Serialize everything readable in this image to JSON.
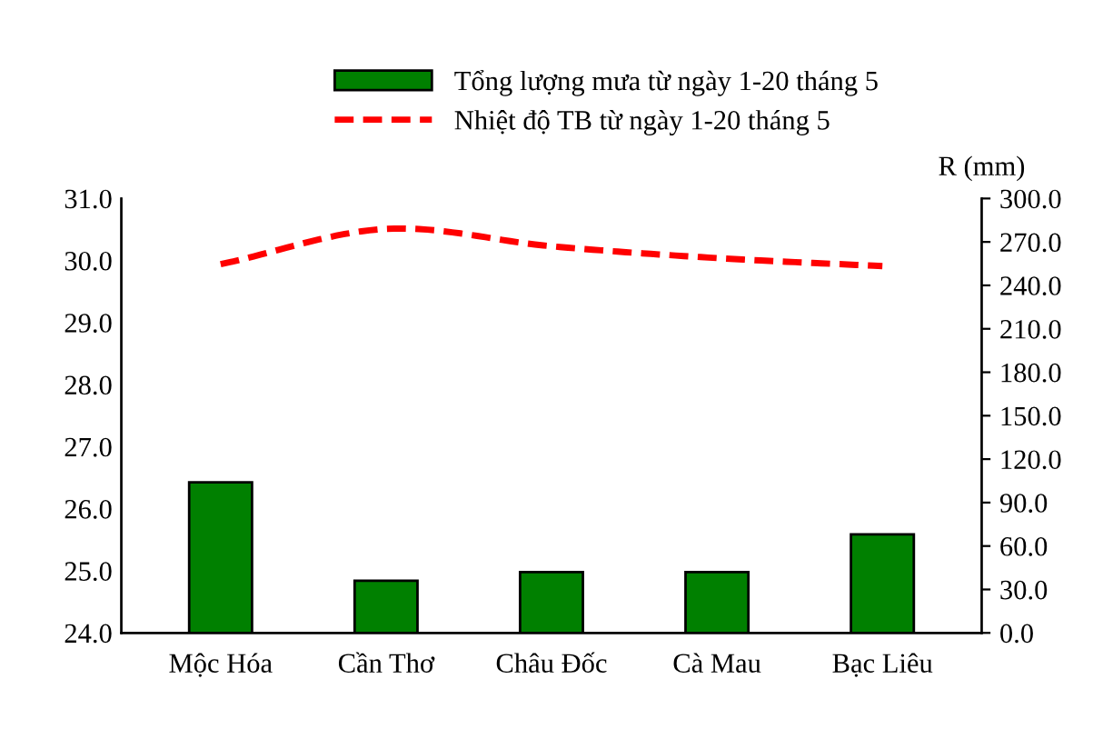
{
  "chart_data": {
    "type": "bar",
    "categories": [
      "Mộc Hóa",
      "Cần Thơ",
      "Châu Đốc",
      "Cà Mau",
      "Bạc Liêu"
    ],
    "series": [
      {
        "name": "Tổng lượng mưa từ ngày 1-20 tháng 5",
        "axis": "y2",
        "color": "#008000",
        "values": [
          104,
          36,
          42,
          42,
          68
        ]
      },
      {
        "name": "Nhiệt độ TB từ ngày 1-20 tháng 5",
        "type": "line",
        "axis": "y",
        "color": "#ff0000",
        "line_style": "dashed",
        "values": [
          29.94,
          30.51,
          30.23,
          30.04,
          29.91
        ]
      }
    ],
    "y2label": "R (mm)",
    "ylim": [
      24.0,
      31.0
    ],
    "yticks": [
      {
        "value": 24,
        "label": "24.0"
      },
      {
        "value": 25,
        "label": "25.0"
      },
      {
        "value": 26,
        "label": "26.0"
      },
      {
        "value": 27,
        "label": "27.0"
      },
      {
        "value": 28,
        "label": "28.0"
      },
      {
        "value": 29,
        "label": "29.0"
      },
      {
        "value": 30,
        "label": "30.0"
      },
      {
        "value": 31,
        "label": "31.0"
      }
    ],
    "y2lim": [
      0,
      300
    ],
    "y2ticks": [
      {
        "value": 0,
        "label": "0.0"
      },
      {
        "value": 30,
        "label": "30.0"
      },
      {
        "value": 60,
        "label": "60.0"
      },
      {
        "value": 90,
        "label": "90.0"
      },
      {
        "value": 120,
        "label": "120.0"
      },
      {
        "value": 150,
        "label": "150.0"
      },
      {
        "value": 180,
        "label": "180.0"
      },
      {
        "value": 210,
        "label": "210.0"
      },
      {
        "value": 240,
        "label": "240.0"
      },
      {
        "value": 270,
        "label": "270.0"
      },
      {
        "value": 300,
        "label": "300.0"
      }
    ],
    "grid": false,
    "legend": "top"
  }
}
